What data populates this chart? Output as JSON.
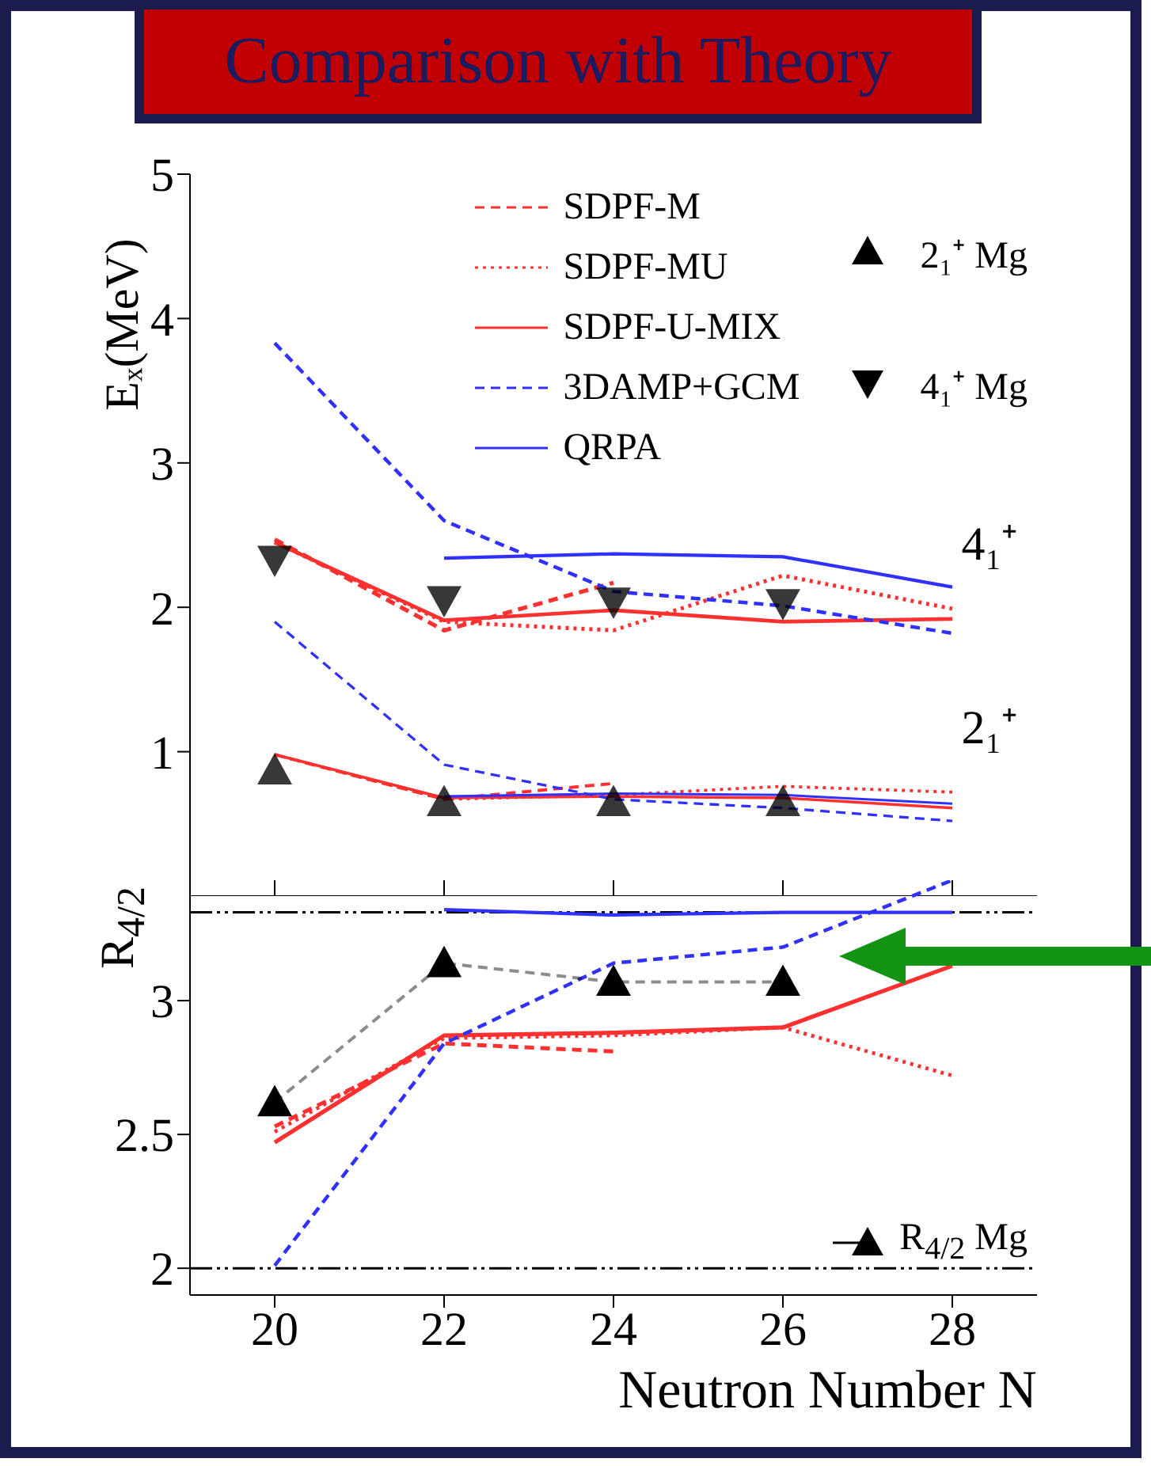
{
  "chart_data": [
    {
      "type": "line",
      "title": "Comparison with Theory",
      "ylabel": "Eₓ(MeV)",
      "x": [
        20,
        22,
        24,
        26,
        28
      ],
      "xlim": [
        19,
        29
      ],
      "xticks": [
        20,
        22,
        24,
        26,
        28
      ],
      "ylim": [
        0,
        5
      ],
      "yticks": [
        1,
        2,
        3,
        4,
        5
      ],
      "tick_labels": "y",
      "legend": "top right",
      "annotations": [
        "4₁⁺",
        "2₁⁺"
      ],
      "series": [
        {
          "name": "SDPF-M",
          "color": "#ff3030",
          "line_style": "dashed",
          "values": [
            2.47,
            1.84,
            2.17,
            null,
            null
          ]
        },
        {
          "name": "SDPF-MU",
          "color": "#ff3030",
          "line_style": "dotted",
          "values": [
            2.45,
            1.9,
            1.84,
            2.22,
            1.99
          ]
        },
        {
          "name": "SDPF-U-MIX",
          "color": "#ff3030",
          "line_style": "solid",
          "values": [
            2.45,
            1.91,
            1.98,
            1.9,
            1.92
          ]
        },
        {
          "name": "3DAMP+GCM",
          "color": "#3030ff",
          "line_style": "dashed",
          "values": [
            3.83,
            2.6,
            2.11,
            2.01,
            1.82
          ]
        },
        {
          "name": "QRPA",
          "color": "#3030ff",
          "line_style": "solid",
          "values": [
            null,
            2.34,
            2.37,
            2.35,
            2.14
          ]
        },
        {
          "color": "#ff3030",
          "line_style": "dashed",
          "values": [
            0.98,
            0.67,
            0.78,
            null,
            null
          ]
        },
        {
          "color": "#ff3030",
          "line_style": "dotted",
          "values": [
            0.98,
            0.67,
            0.7,
            0.76,
            0.72
          ]
        },
        {
          "color": "#ff3030",
          "line_style": "solid",
          "values": [
            0.98,
            0.68,
            0.69,
            0.68,
            0.61
          ]
        },
        {
          "color": "#3030ff",
          "line_style": "dashed",
          "values": [
            1.9,
            0.91,
            0.67,
            0.61,
            0.52
          ]
        },
        {
          "color": "#3030ff",
          "line_style": "solid",
          "values": [
            null,
            0.69,
            0.71,
            0.7,
            0.64
          ]
        },
        {
          "name": "2₁⁺ Mg",
          "type": "scatter",
          "color": "#000000",
          "marker": "triangle",
          "values": [
            0.87,
            0.65,
            0.65,
            0.65,
            null
          ]
        },
        {
          "name": "4₁⁺ Mg",
          "type": "scatter",
          "color": "#000000",
          "marker": "triangle-down",
          "values": [
            2.33,
            2.05,
            2.04,
            2.03,
            null
          ]
        }
      ]
    },
    {
      "type": "line",
      "ylabel": "R$_{4/2}$",
      "xlabel": "Neutron Number N",
      "x": [
        20,
        22,
        24,
        26,
        28
      ],
      "xlim": [
        19,
        29
      ],
      "xticks": [
        20,
        22,
        24,
        26,
        28
      ],
      "ylim": [
        1.9,
        3.45
      ],
      "yticks": [
        2,
        2.5,
        3
      ],
      "legend": "bottom right",
      "ref_lines": [
        {
          "axis": "y",
          "value": 2,
          "color": "#000000",
          "line_style": "dashed"
        },
        {
          "axis": "y",
          "value": 3.33,
          "color": "#000000",
          "line_style": "dashed"
        }
      ],
      "series": [
        {
          "color": "#ff3030",
          "line_style": "solid",
          "values": [
            2.47,
            2.87,
            2.88,
            2.9,
            3.13
          ]
        },
        {
          "color": "#ff3030",
          "line_style": "dashed",
          "values": [
            2.53,
            2.84,
            2.81,
            null,
            null
          ]
        },
        {
          "color": "#ff3030",
          "line_style": "dotted",
          "values": [
            2.51,
            2.86,
            2.87,
            2.9,
            2.72
          ]
        },
        {
          "color": "#3030ff",
          "line_style": "dashed",
          "values": [
            2.01,
            2.84,
            3.14,
            3.2,
            3.45
          ]
        },
        {
          "color": "#3030ff",
          "line_style": "solid",
          "values": [
            null,
            3.34,
            3.32,
            3.33,
            3.33
          ]
        },
        {
          "name": "R$_{4/2}$ Mg",
          "color": "#000000",
          "line_style": "dashed",
          "marker": "triangle",
          "values": [
            2.62,
            3.14,
            3.07,
            3.07,
            null
          ]
        }
      ]
    }
  ]
}
